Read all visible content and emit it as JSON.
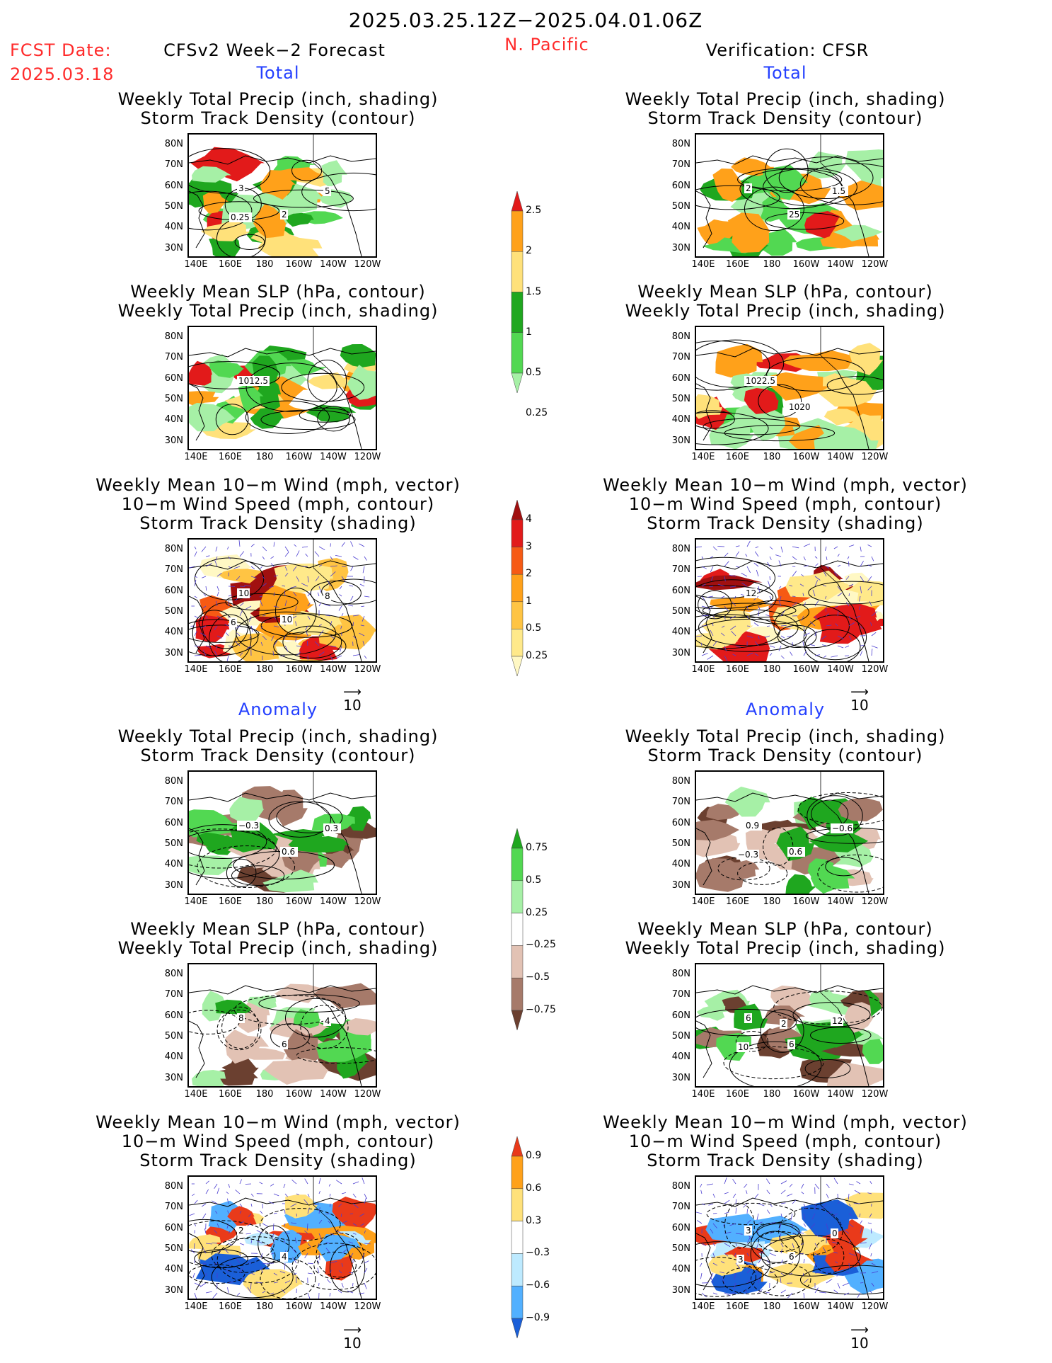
{
  "header": {
    "period": "2025.03.25.12Z−2025.04.01.06Z",
    "fcst_label": "FCST Date:",
    "fcst_date": "2025.03.18",
    "left_title": "CFSv2 Week−2 Forecast",
    "region": "N. Pacific",
    "right_title": "Verification: CFSR"
  },
  "sections": {
    "total": "Total",
    "anomaly": "Anomaly"
  },
  "panel_titles": {
    "precip_storm": [
      "Weekly Total Precip (inch, shading)",
      "Storm Track Density (contour)"
    ],
    "slp_precip": [
      "Weekly Mean SLP (hPa, contour)",
      "Weekly Total Precip (inch, shading)"
    ],
    "wind": [
      "Weekly Mean 10−m Wind (mph, vector)",
      "10−m Wind Speed (mph, contour)",
      "Storm Track Density (shading)"
    ]
  },
  "axes": {
    "lat_labels": [
      "80N",
      "70N",
      "60N",
      "50N",
      "40N",
      "30N"
    ],
    "lon_labels": [
      "140E",
      "160E",
      "180",
      "160W",
      "140W",
      "120W"
    ]
  },
  "vector_ref": "10",
  "colorbars": {
    "precip_total": {
      "labels": [
        "2.5",
        "2",
        "1.5",
        "1",
        "0.5",
        "0.25"
      ],
      "colors": [
        "#e21a1a",
        "#ffa11a",
        "#ffe17a",
        "#1fa71f",
        "#52d852",
        "#a6f0a6"
      ]
    },
    "storm_total": {
      "labels": [
        "4",
        "3",
        "2",
        "1",
        "0.5",
        "0.25"
      ],
      "colors": [
        "#a11010",
        "#e21a1a",
        "#f65a14",
        "#ffa11a",
        "#ffc443",
        "#ffe98a",
        "#fff8c4"
      ]
    },
    "precip_anom": {
      "labels": [
        "0.75",
        "0.5",
        "0.25",
        "−0.25",
        "−0.5",
        "−0.75"
      ],
      "colors": [
        "#1fa71f",
        "#52d852",
        "#a6f0a6",
        "#ffffff",
        "#e2c2b4",
        "#a67a6a",
        "#6b4030"
      ]
    },
    "storm_anom": {
      "labels": [
        "0.9",
        "0.6",
        "0.3",
        "−0.3",
        "−0.6",
        "−0.9"
      ],
      "colors": [
        "#e93a1a",
        "#ffa11a",
        "#ffe17a",
        "#ffffff",
        "#bdeaff",
        "#52b0ff",
        "#1a5fd8"
      ]
    }
  },
  "contour_labels": {
    "f_total_precip": [
      "3",
      "2",
      "5",
      "0.25"
    ],
    "v_total_precip": [
      "2",
      "25",
      "1.5"
    ],
    "f_total_slp": [
      "1012.5"
    ],
    "v_total_slp": [
      "1022.5",
      "1020"
    ],
    "f_total_wind": [
      "10",
      "10",
      "8",
      "6"
    ],
    "v_total_wind": [
      "12"
    ],
    "f_anom_precip": [
      "−0.3",
      "0.6",
      "0.3"
    ],
    "v_anom_precip": [
      "0.9",
      "0.6",
      "−0.6",
      "−0.3"
    ],
    "f_anom_slp": [
      "8",
      "6",
      "4"
    ],
    "v_anom_slp": [
      "6",
      "6",
      "12",
      "10",
      "2"
    ],
    "f_anom_wind": [
      "2",
      "4"
    ],
    "v_anom_wind": [
      "3",
      "6",
      "0",
      "3"
    ]
  }
}
